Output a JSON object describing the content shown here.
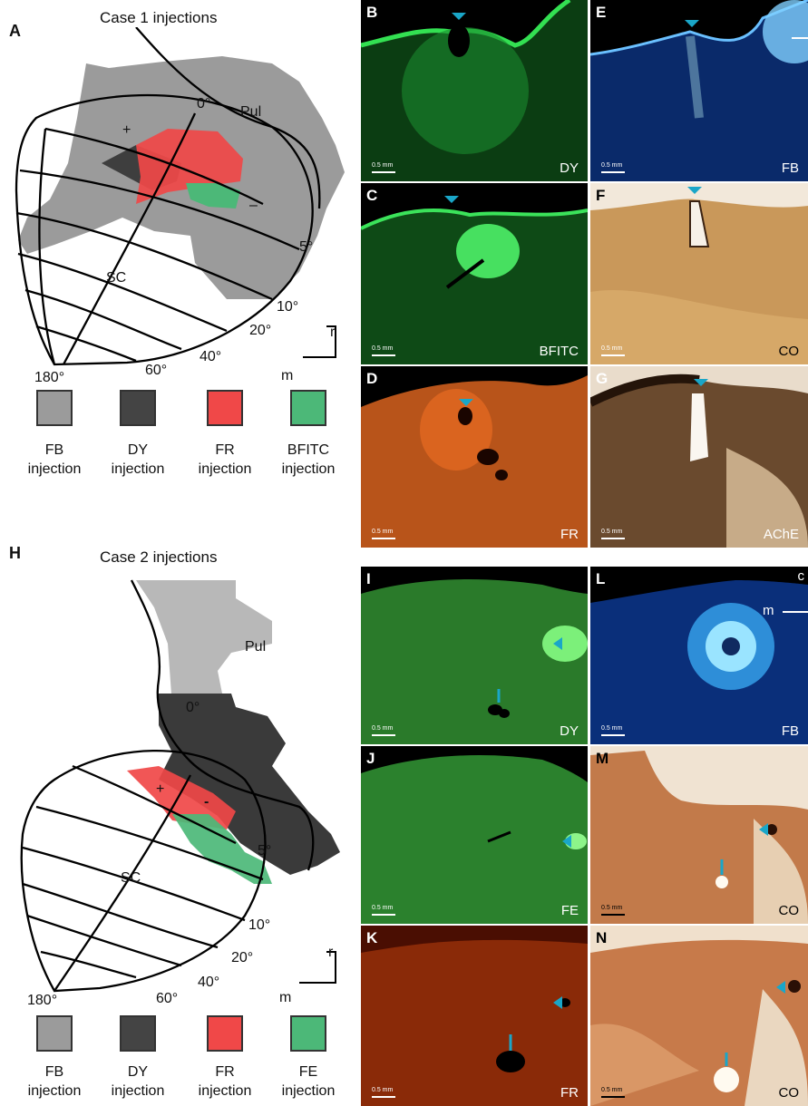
{
  "case1": {
    "panel_label": "A",
    "title": "Case 1 injections",
    "region_labels": {
      "pul": "Pul",
      "sc": "SC",
      "plus": "+",
      "minus": "–"
    },
    "degrees": [
      "0°",
      "5°",
      "10°",
      "20°",
      "40°",
      "60°",
      "180°"
    ],
    "orientation": {
      "r": "r",
      "m": "m"
    },
    "legend": [
      {
        "name": "FB",
        "sub": "injection",
        "color": "#9b9b9b"
      },
      {
        "name": "DY",
        "sub": "injection",
        "color": "#444444"
      },
      {
        "name": "FR",
        "sub": "injection",
        "color": "#f04848"
      },
      {
        "name": "BFITC",
        "sub": "injection",
        "color": "#4cb878"
      }
    ]
  },
  "case2": {
    "panel_label": "H",
    "title": "Case 2 injections",
    "region_labels": {
      "pul": "Pul",
      "sc": "SC",
      "plus": "+",
      "minus": "-"
    },
    "degrees": [
      "0°",
      "5°",
      "10°",
      "20°",
      "40°",
      "60°",
      "180°"
    ],
    "orientation": {
      "r": "r",
      "m": "m"
    },
    "legend": [
      {
        "name": "FB",
        "sub": "injection",
        "color": "#9b9b9b"
      },
      {
        "name": "DY",
        "sub": "injection",
        "color": "#444444"
      },
      {
        "name": "FR",
        "sub": "injection",
        "color": "#f04848"
      },
      {
        "name": "FE",
        "sub": "injection",
        "color": "#4cb878"
      }
    ]
  },
  "photos": {
    "B": {
      "label": "B",
      "stain": "DY",
      "scale": "0.5 mm"
    },
    "C": {
      "label": "C",
      "stain": "BFITC",
      "scale": "0.5 mm"
    },
    "D": {
      "label": "D",
      "stain": "FR",
      "scale": "0.5 mm"
    },
    "E": {
      "label": "E",
      "stain": "FB",
      "scale": "0.5 mm"
    },
    "F": {
      "label": "F",
      "stain": "CO",
      "scale": "0.5 mm"
    },
    "G": {
      "label": "G",
      "stain": "AChE",
      "scale": "0.5 mm"
    },
    "I": {
      "label": "I",
      "stain": "DY",
      "scale": "0.5 mm"
    },
    "J": {
      "label": "J",
      "stain": "FE",
      "scale": "0.5 mm"
    },
    "K": {
      "label": "K",
      "stain": "FR",
      "scale": "0.5 mm"
    },
    "L": {
      "label": "L",
      "stain": "FB",
      "scale": "0.5 mm",
      "corner": "c",
      "m": "m"
    },
    "M": {
      "label": "M",
      "stain": "CO",
      "scale": "0.5 mm"
    },
    "N": {
      "label": "N",
      "stain": "CO",
      "scale": "0.5 mm"
    }
  },
  "colors": {
    "fb": "#9b9b9b",
    "dy": "#444444",
    "fr": "#f04848",
    "green": "#4cb878",
    "arrow": "#1aa6c8"
  }
}
